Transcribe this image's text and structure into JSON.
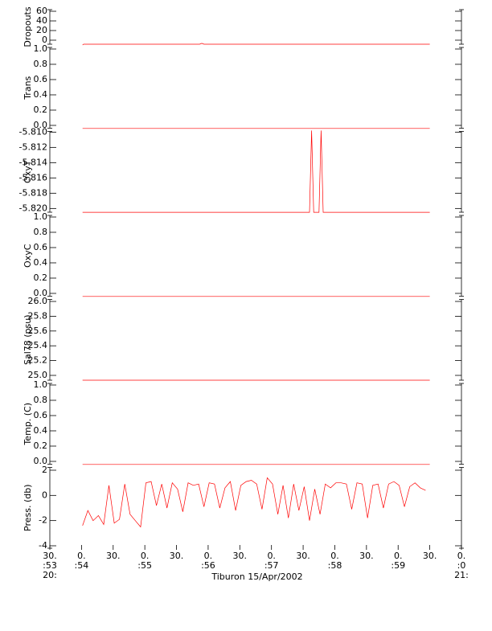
{
  "chart_data": [
    {
      "type": "line",
      "y_label": "Dropouts",
      "color": "#ff0000",
      "xlim": [
        30,
        420
      ],
      "ylim": [
        -11.7,
        66.7
      ],
      "yticks": [
        0,
        20,
        40,
        60
      ],
      "x": [
        61,
        62,
        172,
        174,
        176,
        390
      ],
      "values": [
        -10,
        -8.3,
        -8.3,
        -6.5,
        -8.3,
        -8.3
      ]
    },
    {
      "type": "line",
      "y_label": "Trans",
      "color": "#ff0000",
      "xlim": [
        30,
        420
      ],
      "ylim": [
        -0.058,
        1.042
      ],
      "yticks": [
        {
          "value": 0,
          "label": "0.0"
        },
        0.2,
        0.4,
        0.6,
        0.8,
        {
          "value": 1,
          "label": "1.0"
        }
      ],
      "x": [
        61,
        390
      ],
      "values": [
        -0.04,
        -0.04
      ]
    },
    {
      "type": "line",
      "y_label": "OxyT",
      "color": "#ff0000",
      "xlim": [
        30,
        420
      ],
      "ylim": [
        -5.8207,
        -5.8097
      ],
      "yticks": [
        {
          "value": -5.82,
          "label": "-5.820"
        },
        {
          "value": -5.818,
          "label": "-5.818"
        },
        {
          "value": -5.816,
          "label": "-5.816"
        },
        {
          "value": -5.814,
          "label": "-5.814"
        },
        {
          "value": -5.812,
          "label": "-5.812"
        },
        {
          "value": -5.81,
          "label": "-5.810"
        }
      ],
      "x": [
        61,
        276,
        278,
        280,
        285,
        287,
        289,
        390
      ],
      "values": [
        -5.8205,
        -5.8205,
        -5.8098,
        -5.8205,
        -5.8205,
        -5.8098,
        -5.8205,
        -5.8205
      ]
    },
    {
      "type": "line",
      "y_label": "OxyC",
      "color": "#ff0000",
      "xlim": [
        30,
        420
      ],
      "ylim": [
        -0.058,
        1.042
      ],
      "yticks": [
        {
          "value": 0,
          "label": "0.0"
        },
        0.2,
        0.4,
        0.6,
        0.8,
        {
          "value": 1,
          "label": "1.0"
        }
      ],
      "x": [
        61,
        390
      ],
      "values": [
        -0.04,
        -0.04
      ]
    },
    {
      "type": "line",
      "y_label": "Sal78 (psu)",
      "color": "#ff0000",
      "xlim": [
        30,
        420
      ],
      "ylim": [
        24.913,
        26.049
      ],
      "yticks": [
        {
          "value": 25,
          "label": "25.0"
        },
        25.2,
        25.4,
        25.6,
        25.8,
        {
          "value": 26,
          "label": "26.0"
        }
      ],
      "x": [
        61,
        390
      ],
      "values": [
        24.935,
        24.935
      ]
    },
    {
      "type": "line",
      "y_label": "Temp. (C)",
      "color": "#ff0000",
      "xlim": [
        30,
        420
      ],
      "ylim": [
        -0.058,
        1.042
      ],
      "yticks": [
        {
          "value": 0,
          "label": "0.0"
        },
        0.2,
        0.4,
        0.6,
        0.8,
        {
          "value": 1,
          "label": "1.0"
        }
      ],
      "x": [
        61,
        390
      ],
      "values": [
        -0.04,
        -0.04
      ]
    },
    {
      "type": "line",
      "y_label": "Press. (db)",
      "color": "#ff0000",
      "xlim": [
        30,
        420
      ],
      "ylim": [
        -4.32,
        2.35
      ],
      "yticks": [
        -4,
        -2,
        0,
        2
      ],
      "x_label": "Tiburon 15/Apr/2002",
      "xticks": [
        {
          "value": 30,
          "label": "30.\n:53\n20:"
        },
        {
          "value": 60,
          "label": "0.\n:54"
        },
        {
          "value": 90,
          "label": "30."
        },
        {
          "value": 120,
          "label": "0.\n:55"
        },
        {
          "value": 150,
          "label": "30."
        },
        {
          "value": 180,
          "label": "0.\n:56"
        },
        {
          "value": 210,
          "label": "30."
        },
        {
          "value": 240,
          "label": "0.\n:57"
        },
        {
          "value": 270,
          "label": "30."
        },
        {
          "value": 300,
          "label": "0.\n:58"
        },
        {
          "value": 330,
          "label": "30."
        },
        {
          "value": 360,
          "label": "0.\n:59"
        },
        {
          "value": 390,
          "label": "30."
        },
        {
          "value": 420,
          "label": "0.\n:0\n21:"
        }
      ],
      "x": [
        61,
        66,
        71,
        76,
        81,
        86,
        91,
        96,
        101,
        106,
        111,
        116,
        121,
        126,
        131,
        136,
        141,
        146,
        151,
        156,
        161,
        166,
        171,
        176,
        181,
        186,
        191,
        196,
        201,
        206,
        211,
        216,
        221,
        226,
        231,
        236,
        241,
        246,
        251,
        256,
        261,
        266,
        271,
        276,
        281,
        286,
        291,
        296,
        301,
        306,
        311,
        316,
        321,
        326,
        331,
        336,
        341,
        346,
        351,
        356,
        361,
        366,
        371,
        376,
        381,
        386
      ],
      "values": [
        -2.4,
        -1.2,
        -2.0,
        -1.6,
        -2.3,
        0.8,
        -2.2,
        -1.9,
        0.9,
        -1.5,
        -2.0,
        -2.5,
        1.0,
        1.1,
        -0.8,
        0.9,
        -1.0,
        1.0,
        0.5,
        -1.3,
        1.0,
        0.8,
        0.9,
        -0.9,
        1.0,
        0.9,
        -1.0,
        0.6,
        1.1,
        -1.2,
        0.8,
        1.1,
        1.2,
        0.9,
        -1.1,
        1.4,
        0.9,
        -1.5,
        0.8,
        -1.8,
        0.9,
        -1.2,
        0.7,
        -2.0,
        0.5,
        -1.5,
        0.9,
        0.6,
        1.0,
        1.0,
        0.9,
        -1.1,
        1.0,
        0.9,
        -1.8,
        0.8,
        0.9,
        -1.0,
        0.9,
        1.1,
        0.8,
        -0.9,
        0.7,
        1.0,
        0.6,
        0.4
      ]
    }
  ]
}
